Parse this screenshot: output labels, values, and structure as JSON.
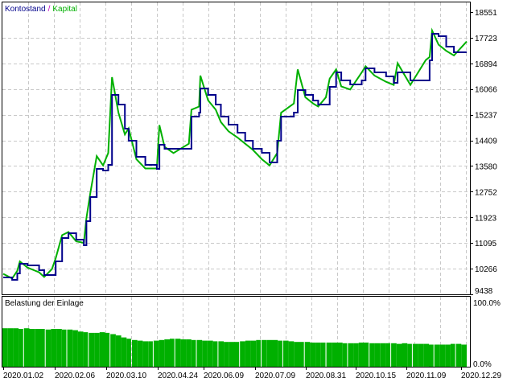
{
  "chart_data": [
    {
      "type": "line",
      "legend": [
        {
          "name": "Kontostand",
          "color": "#00008b"
        },
        {
          "name": "Kapital",
          "color": "#00b000"
        }
      ],
      "legend_separator": "/",
      "legend_placement": "top-left",
      "grid": true,
      "ylim": [
        9438,
        18551
      ],
      "yticks": [
        "18551",
        "17723",
        "16894",
        "16066",
        "15237",
        "14409",
        "13580",
        "12752",
        "11923",
        "11095",
        "10266",
        "9438"
      ],
      "xticks": [
        "2020.01.02",
        "2020.02.06",
        "2020.03.10",
        "2020.04.24",
        "2020.06.09",
        "2020.07.09",
        "2020.08.31",
        "2020.10.15",
        "2020.11.09",
        "2020.12.29"
      ],
      "xlim": [
        "2020-01-02",
        "2020-12-29"
      ],
      "columns": [
        "date",
        "Kontostand",
        "Kapital"
      ],
      "points": [
        [
          "2020-01-02",
          9983,
          10100
        ],
        [
          "2020-01-09",
          9905,
          9950
        ],
        [
          "2020-01-13",
          10113,
          10200
        ],
        [
          "2020-01-15",
          10424,
          10500
        ],
        [
          "2020-01-21",
          10373,
          10300
        ],
        [
          "2020-01-30",
          10217,
          10150
        ],
        [
          "2020-02-03",
          10061,
          10000
        ],
        [
          "2020-02-09",
          10061,
          10250
        ],
        [
          "2020-02-12",
          10502,
          10600
        ],
        [
          "2020-02-17",
          11255,
          11350
        ],
        [
          "2020-02-22",
          11411,
          11450
        ],
        [
          "2020-02-28",
          11203,
          11150
        ],
        [
          "2020-03-05",
          11022,
          11100
        ],
        [
          "2020-03-07",
          11800,
          11900
        ],
        [
          "2020-03-10",
          12579,
          12700
        ],
        [
          "2020-03-15",
          13488,
          13900
        ],
        [
          "2020-03-20",
          13436,
          13600
        ],
        [
          "2020-03-24",
          13618,
          14000
        ],
        [
          "2020-03-27",
          15876,
          16450
        ],
        [
          "2020-04-01",
          15565,
          15300
        ],
        [
          "2020-04-06",
          14786,
          14600
        ],
        [
          "2020-04-09",
          14396,
          14800
        ],
        [
          "2020-04-15",
          13877,
          13800
        ],
        [
          "2020-04-22",
          13618,
          13500
        ],
        [
          "2020-05-01",
          13488,
          13500
        ],
        [
          "2020-05-03",
          14267,
          14900
        ],
        [
          "2020-05-07",
          14137,
          14200
        ],
        [
          "2020-05-14",
          14137,
          14000
        ],
        [
          "2020-05-26",
          14137,
          14300
        ],
        [
          "2020-05-28",
          15175,
          15400
        ],
        [
          "2020-06-03",
          15305,
          15500
        ],
        [
          "2020-06-04",
          16084,
          16500
        ],
        [
          "2020-06-10",
          15876,
          15700
        ],
        [
          "2020-06-16",
          15565,
          15400
        ],
        [
          "2020-06-20",
          15175,
          15000
        ],
        [
          "2020-06-26",
          14916,
          14700
        ],
        [
          "2020-07-03",
          14656,
          14500
        ],
        [
          "2020-07-09",
          14396,
          14300
        ],
        [
          "2020-07-15",
          14137,
          14100
        ],
        [
          "2020-07-22",
          14007,
          13800
        ],
        [
          "2020-07-28",
          13695,
          13600
        ],
        [
          "2020-08-03",
          14396,
          14000
        ],
        [
          "2020-08-06",
          15175,
          15300
        ],
        [
          "2020-08-16",
          15305,
          15600
        ],
        [
          "2020-08-19",
          16032,
          16700
        ],
        [
          "2020-08-25",
          15876,
          15800
        ],
        [
          "2020-08-31",
          15694,
          15600
        ],
        [
          "2020-09-04",
          15565,
          15500
        ],
        [
          "2020-09-10",
          15565,
          15800
        ],
        [
          "2020-09-13",
          16136,
          16400
        ],
        [
          "2020-09-18",
          16603,
          16700
        ],
        [
          "2020-09-22",
          16343,
          16150
        ],
        [
          "2020-09-29",
          16214,
          16050
        ],
        [
          "2020-10-08",
          16343,
          16600
        ],
        [
          "2020-10-11",
          16733,
          16800
        ],
        [
          "2020-10-18",
          16603,
          16500
        ],
        [
          "2020-10-27",
          16473,
          16300
        ],
        [
          "2020-11-02",
          16265,
          16200
        ],
        [
          "2020-11-05",
          16603,
          16900
        ],
        [
          "2020-11-15",
          16343,
          16200
        ],
        [
          "2020-11-27",
          16343,
          17000
        ],
        [
          "2020-11-30",
          16992,
          17100
        ],
        [
          "2020-12-02",
          17849,
          17950
        ],
        [
          "2020-12-07",
          17771,
          17500
        ],
        [
          "2020-12-13",
          17434,
          17300
        ],
        [
          "2020-12-19",
          17252,
          17150
        ],
        [
          "2020-12-29",
          17252,
          17600
        ]
      ]
    },
    {
      "type": "bar",
      "title": "Belastung der Einlage",
      "ylim": [
        0,
        100
      ],
      "yticks": [
        "100.0%",
        "0.0%"
      ],
      "color": "#00b000",
      "values": [
        59,
        59,
        59,
        58,
        59,
        58,
        58,
        58,
        57,
        58,
        58,
        57,
        57,
        56,
        54,
        53,
        52,
        52,
        53,
        52,
        50,
        48,
        45,
        43,
        41,
        40,
        39,
        39,
        40,
        41,
        42,
        43,
        43,
        42,
        42,
        41,
        41,
        40,
        40,
        39,
        39,
        38,
        38,
        38,
        39,
        40,
        40,
        41,
        41,
        41,
        41,
        40,
        40,
        39,
        38,
        38,
        38,
        37,
        37,
        37,
        37,
        37,
        37,
        36,
        36,
        36,
        37,
        37,
        36,
        36,
        36,
        36,
        36,
        35,
        36,
        35,
        35,
        35,
        35,
        34,
        34,
        34,
        34,
        35,
        35,
        34
      ]
    }
  ]
}
